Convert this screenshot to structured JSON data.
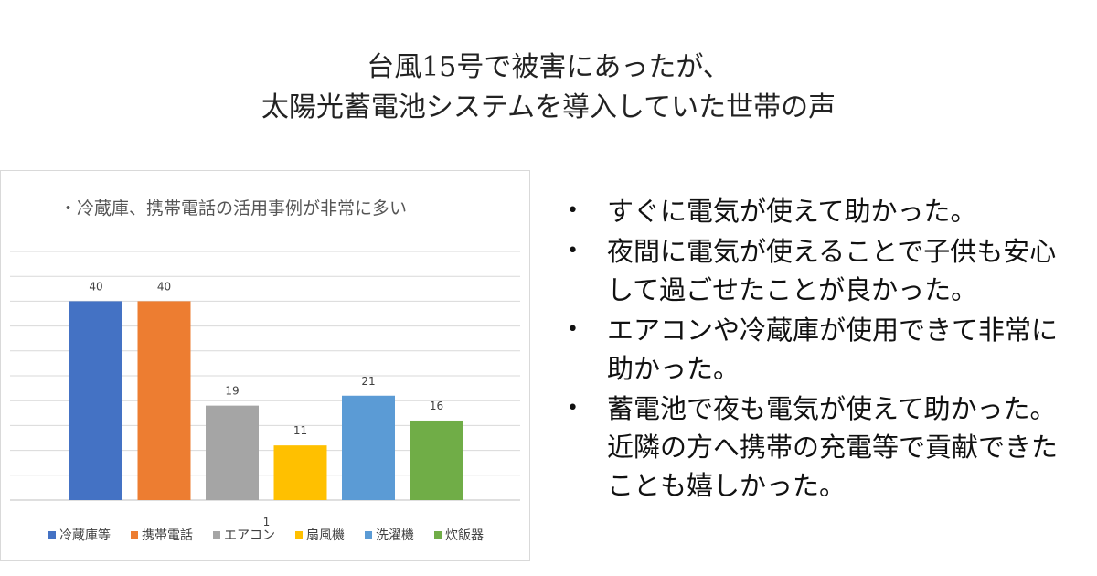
{
  "slide": {
    "title_line1": "台風15号で被害にあったが、",
    "title_line2": "太陽光蓄電池システムを導入していた世帯の声"
  },
  "chart_data": {
    "type": "bar",
    "title": "・冷蔵庫、携帯電話の活用事例が非常に多い",
    "categories": [
      "冷蔵庫等",
      "携帯電話",
      "エアコン",
      "扇風機",
      "洗濯機",
      "炊飯器"
    ],
    "values": [
      40,
      40,
      19,
      11,
      21,
      16
    ],
    "colors": [
      "#4472C4",
      "#ED7D31",
      "#A5A5A5",
      "#FFC000",
      "#5B9BD5",
      "#70AD47"
    ],
    "ylim": [
      0,
      50
    ],
    "grid": true,
    "legend": "bottom",
    "annotation": "1",
    "xlabel": "",
    "ylabel": ""
  },
  "bullets": [
    "すぐに電気が使えて助かった。",
    "夜間に電気が使えることで子供も安心して過ごせたことが良かった。",
    "エアコンや冷蔵庫が使用できて非常に助かった。",
    "蓄電池で夜も電気が使えて助かった。近隣の方へ携帯の充電等で貢献できたことも嬉しかった。"
  ],
  "bullet_symbol": "•"
}
